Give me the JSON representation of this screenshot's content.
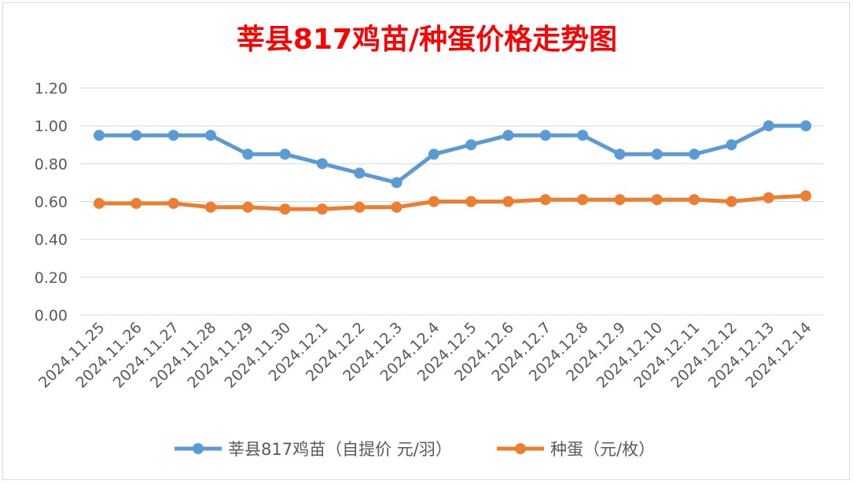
{
  "chart_data": {
    "type": "line",
    "title": "莘县817鸡苗/种蛋价格走势图",
    "xlabel": "",
    "ylabel": "",
    "ylim": [
      0,
      1.2
    ],
    "yticks": [
      "0.00",
      "0.20",
      "0.40",
      "0.60",
      "0.80",
      "1.00",
      "1.20"
    ],
    "grid": true,
    "legend_position": "bottom",
    "categories": [
      "2024.11.25",
      "2024.11.26",
      "2024.11.27",
      "2024.11.28",
      "2024.11.29",
      "2024.11.30",
      "2024.12.1",
      "2024.12.2",
      "2024.12.3",
      "2024.12.4",
      "2024.12.5",
      "2024.12.6",
      "2024.12.7",
      "2024.12.8",
      "2024.12.9",
      "2024.12.10",
      "2024.12.11",
      "2024.12.12",
      "2024.12.13",
      "2024.12.14"
    ],
    "series": [
      {
        "name": "莘县817鸡苗（自提价 元/羽）",
        "color": "#5b9bd5",
        "values": [
          0.95,
          0.95,
          0.95,
          0.95,
          0.85,
          0.85,
          0.8,
          0.75,
          0.7,
          0.85,
          0.9,
          0.95,
          0.95,
          0.95,
          0.85,
          0.85,
          0.85,
          0.9,
          1.0,
          1.0
        ]
      },
      {
        "name": "种蛋（元/枚）",
        "color": "#ed7d31",
        "values": [
          0.59,
          0.59,
          0.59,
          0.57,
          0.57,
          0.56,
          0.56,
          0.57,
          0.57,
          0.6,
          0.6,
          0.6,
          0.61,
          0.61,
          0.61,
          0.61,
          0.61,
          0.6,
          0.62,
          0.63
        ]
      }
    ],
    "title_color": "#ff0000"
  }
}
